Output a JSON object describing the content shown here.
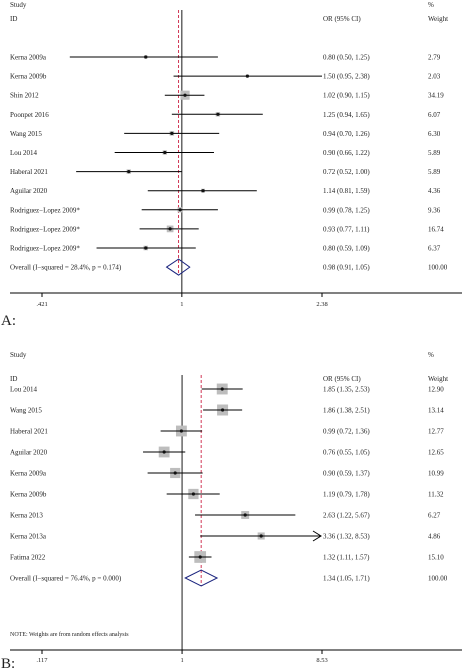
{
  "colors": {
    "ref": "#1a1a1a",
    "pooled_line": "#cc2244",
    "diamond": "#1a237e",
    "box": "#bdbdbd",
    "ci": "#000000"
  },
  "chart_data": [
    {
      "type": "forest",
      "panel_label": "A:",
      "headers": {
        "study": "Study",
        "id": "ID",
        "or": "OR (95% CI)",
        "pct": "%",
        "weight": "Weight"
      },
      "scale": "log",
      "xlim": [
        0.421,
        2.38
      ],
      "ticks": [
        {
          "value": 0.421,
          "label": ".421"
        },
        {
          "value": 1,
          "label": "1"
        },
        {
          "value": 2.38,
          "label": "2.38"
        }
      ],
      "studies": [
        {
          "id": "Kerna 2009a",
          "or": 0.8,
          "lo": 0.5,
          "hi": 1.25,
          "ci_text": "0.80 (0.50, 1.25)",
          "weight": 2.79,
          "weight_text": "2.79"
        },
        {
          "id": "Kerna 2009b",
          "or": 1.5,
          "lo": 0.95,
          "hi": 2.38,
          "ci_text": "1.50 (0.95, 2.38)",
          "weight": 2.03,
          "weight_text": "2.03"
        },
        {
          "id": "Shin 2012",
          "or": 1.02,
          "lo": 0.9,
          "hi": 1.15,
          "ci_text": "1.02 (0.90, 1.15)",
          "weight": 34.19,
          "weight_text": "34.19"
        },
        {
          "id": "Poonpet 2016",
          "or": 1.25,
          "lo": 0.94,
          "hi": 1.65,
          "ci_text": "1.25 (0.94, 1.65)",
          "weight": 6.07,
          "weight_text": "6.07"
        },
        {
          "id": "Wang 2015",
          "or": 0.94,
          "lo": 0.7,
          "hi": 1.26,
          "ci_text": "0.94 (0.70, 1.26)",
          "weight": 6.3,
          "weight_text": "6.30"
        },
        {
          "id": "Lou 2014",
          "or": 0.9,
          "lo": 0.66,
          "hi": 1.22,
          "ci_text": "0.90 (0.66, 1.22)",
          "weight": 5.89,
          "weight_text": "5.89"
        },
        {
          "id": "Haberal 2021",
          "or": 0.72,
          "lo": 0.52,
          "hi": 1.0,
          "ci_text": "0.72 (0.52, 1.00)",
          "weight": 5.89,
          "weight_text": "5.89"
        },
        {
          "id": "Aguilar 2020",
          "or": 1.14,
          "lo": 0.81,
          "hi": 1.59,
          "ci_text": "1.14 (0.81, 1.59)",
          "weight": 4.36,
          "weight_text": "4.36"
        },
        {
          "id": "Rodriguez−Lopez 2009*",
          "or": 0.99,
          "lo": 0.78,
          "hi": 1.25,
          "ci_text": "0.99 (0.78, 1.25)",
          "weight": 9.36,
          "weight_text": "9.36"
        },
        {
          "id": "Rodriguez−Lopez 2009*",
          "or": 0.93,
          "lo": 0.77,
          "hi": 1.11,
          "ci_text": "0.93 (0.77, 1.11)",
          "weight": 16.74,
          "weight_text": "16.74"
        },
        {
          "id": "Rodriguez−Lopez 2009*",
          "or": 0.8,
          "lo": 0.59,
          "hi": 1.09,
          "ci_text": "0.80 (0.59, 1.09)",
          "weight": 6.37,
          "weight_text": "6.37"
        }
      ],
      "overall": {
        "id": "Overall  (I−squared = 28.4%, p = 0.174)",
        "or": 0.98,
        "lo": 0.91,
        "hi": 1.05,
        "ci_text": "0.98 (0.91, 1.05)",
        "weight_text": "100.00"
      },
      "note": ""
    },
    {
      "type": "forest",
      "panel_label": "B:",
      "headers": {
        "study": "Study",
        "id": "ID",
        "or": "OR (95% CI)",
        "pct": "%",
        "weight": "Weight"
      },
      "scale": "log",
      "xlim": [
        0.117,
        8.53
      ],
      "ticks": [
        {
          "value": 0.117,
          "label": ".117"
        },
        {
          "value": 1,
          "label": "1"
        },
        {
          "value": 8.53,
          "label": "8.53"
        }
      ],
      "studies": [
        {
          "id": "Lou 2014",
          "or": 1.85,
          "lo": 1.35,
          "hi": 2.53,
          "ci_text": "1.85 (1.35, 2.53)",
          "weight": 12.9,
          "weight_text": "12.90"
        },
        {
          "id": "Wang 2015",
          "or": 1.86,
          "lo": 1.38,
          "hi": 2.51,
          "ci_text": "1.86 (1.38, 2.51)",
          "weight": 13.14,
          "weight_text": "13.14"
        },
        {
          "id": "Haberal 2021",
          "or": 0.99,
          "lo": 0.72,
          "hi": 1.36,
          "ci_text": "0.99 (0.72, 1.36)",
          "weight": 12.77,
          "weight_text": "12.77"
        },
        {
          "id": "Aguilar 2020",
          "or": 0.76,
          "lo": 0.55,
          "hi": 1.05,
          "ci_text": "0.76 (0.55, 1.05)",
          "weight": 12.65,
          "weight_text": "12.65"
        },
        {
          "id": "Kerna 2009a",
          "or": 0.9,
          "lo": 0.59,
          "hi": 1.37,
          "ci_text": "0.90 (0.59, 1.37)",
          "weight": 10.99,
          "weight_text": "10.99"
        },
        {
          "id": "Kerna 2009b",
          "or": 1.19,
          "lo": 0.79,
          "hi": 1.78,
          "ci_text": "1.19 (0.79, 1.78)",
          "weight": 11.32,
          "weight_text": "11.32"
        },
        {
          "id": "Kerna 2013",
          "or": 2.63,
          "lo": 1.22,
          "hi": 5.67,
          "ci_text": "2.63 (1.22, 5.67)",
          "weight": 6.27,
          "weight_text": "6.27"
        },
        {
          "id": "Kerna 2013a",
          "or": 3.36,
          "lo": 1.32,
          "hi": 8.53,
          "ci_text": "3.36 (1.32, 8.53)",
          "weight": 4.86,
          "weight_text": "4.86",
          "arrow": true
        },
        {
          "id": "Fatima 2022",
          "or": 1.32,
          "lo": 1.11,
          "hi": 1.57,
          "ci_text": "1.32 (1.11, 1.57)",
          "weight": 15.1,
          "weight_text": "15.10"
        }
      ],
      "overall": {
        "id": "Overall  (I−squared = 76.4%, p = 0.000)",
        "or": 1.34,
        "lo": 1.05,
        "hi": 1.71,
        "ci_text": "1.34 (1.05, 1.71)",
        "weight_text": "100.00"
      },
      "note": "NOTE: Weights are from random effects analysis"
    }
  ]
}
